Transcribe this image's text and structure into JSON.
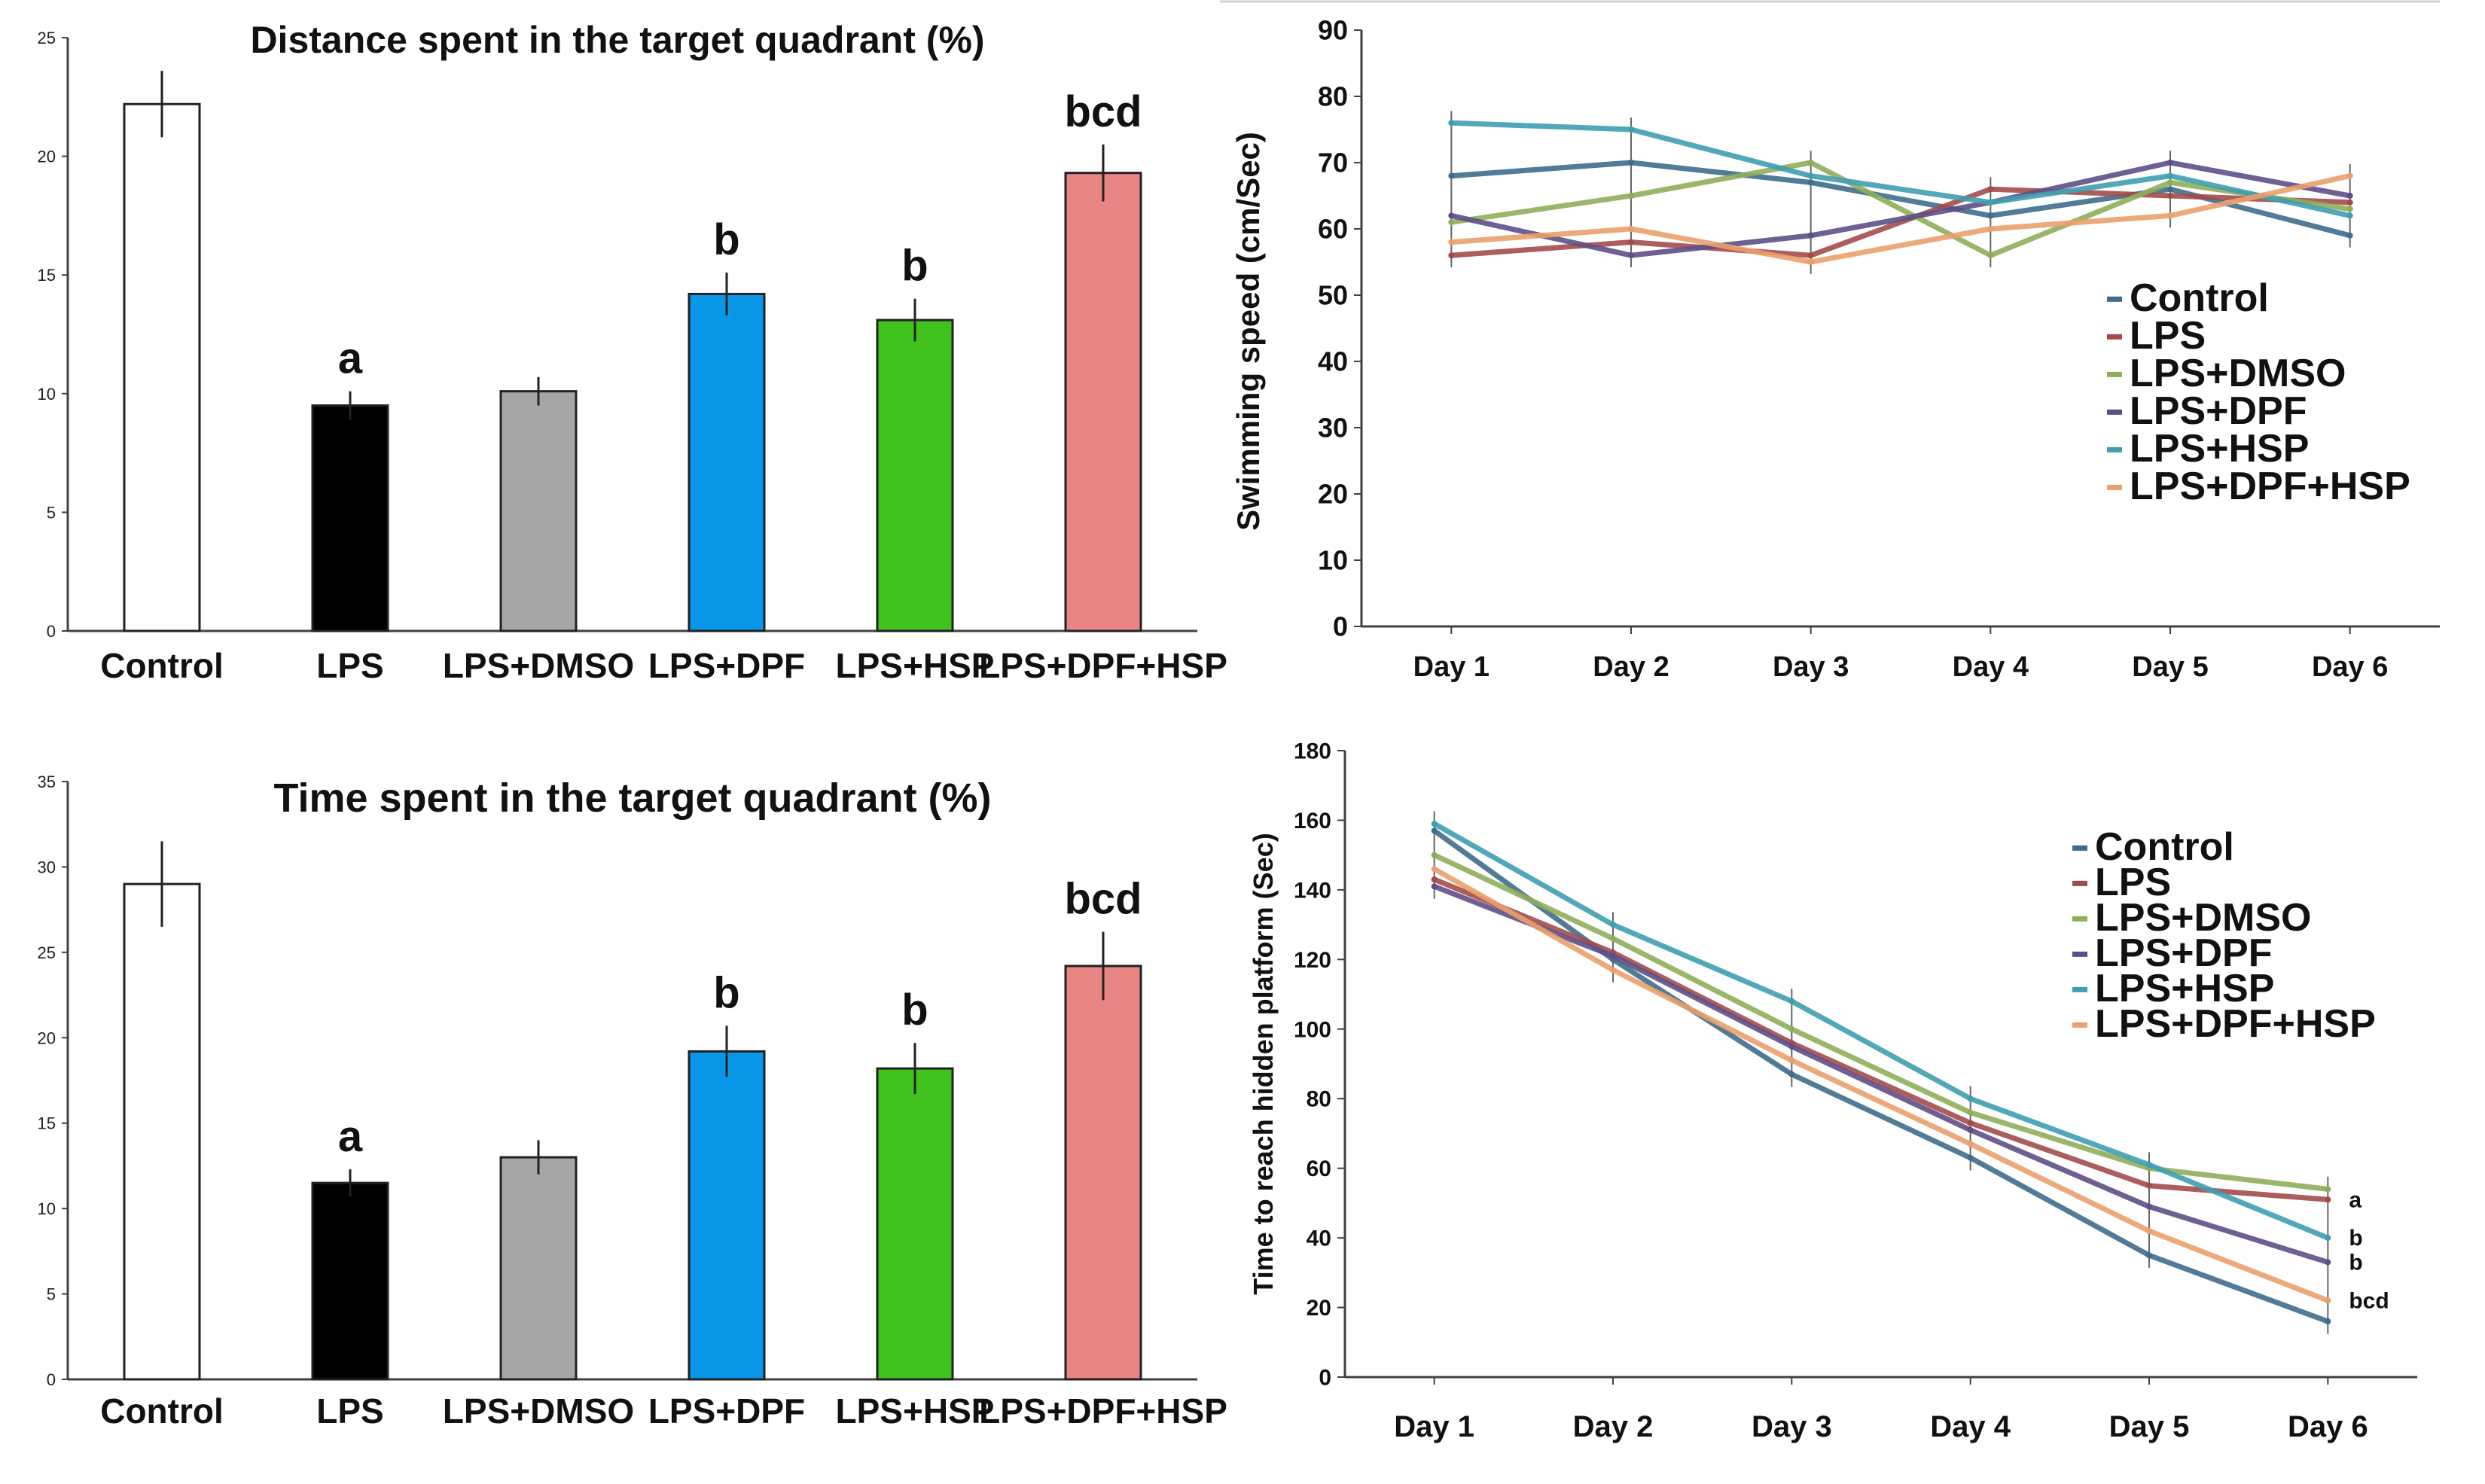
{
  "chart_data": [
    {
      "id": "distance",
      "type": "bar",
      "title": "Distance spent in the target quadrant (%)",
      "categories": [
        "Control",
        "LPS",
        "LPS+DMSO",
        "LPS+DPF",
        "LPS+HSP",
        "LPS+DPF+HSP"
      ],
      "values": [
        22.2,
        9.5,
        10.1,
        14.2,
        13.1,
        19.3
      ],
      "errors": [
        1.4,
        0.6,
        0.6,
        0.9,
        0.9,
        1.2
      ],
      "significance": [
        "",
        "a",
        "",
        "b",
        "b",
        "bcd"
      ],
      "colors": [
        "#ffffff",
        "#000000",
        "#a6a6a6",
        "#0a96e6",
        "#41c21f",
        "#e88484"
      ],
      "yticks": [
        0,
        5,
        10,
        15,
        20,
        25
      ],
      "ylim": [
        0,
        25
      ],
      "xlabel": "",
      "ylabel": ""
    },
    {
      "id": "speed",
      "type": "line",
      "title": "",
      "categories": [
        "Day 1",
        "Day 2",
        "Day 3",
        "Day 4",
        "Day 5",
        "Day 6"
      ],
      "series": [
        {
          "name": "Control",
          "color": "#3f6d8c",
          "values": [
            68,
            70,
            67,
            62,
            66,
            59
          ]
        },
        {
          "name": "LPS",
          "color": "#a34b4b",
          "values": [
            56,
            58,
            56,
            66,
            65,
            64
          ]
        },
        {
          "name": "LPS+DMSO",
          "color": "#8fae5a",
          "values": [
            61,
            65,
            70,
            56,
            67,
            63
          ]
        },
        {
          "name": "LPS+DPF",
          "color": "#5e4f86",
          "values": [
            62,
            56,
            59,
            64,
            70,
            65
          ]
        },
        {
          "name": "LPS+HSP",
          "color": "#3f9fb0",
          "values": [
            76,
            75,
            68,
            64,
            68,
            62
          ]
        },
        {
          "name": "LPS+DPF+HSP",
          "color": "#eaa06c",
          "values": [
            58,
            60,
            55,
            60,
            62,
            68
          ]
        }
      ],
      "yticks": [
        0,
        10,
        20,
        30,
        40,
        50,
        60,
        70,
        80,
        90
      ],
      "ylim": [
        0,
        90
      ],
      "xlabel": "",
      "ylabel": "Swimming speed (cm/Sec)",
      "legend": "center-right"
    },
    {
      "id": "time",
      "type": "bar",
      "title": "Time spent in the target quadrant (%)",
      "categories": [
        "Control",
        "LPS",
        "LPS+DMSO",
        "LPS+DPF",
        "LPS+HSP",
        "LPS+DPF+HSP"
      ],
      "values": [
        29.0,
        11.5,
        13.0,
        19.2,
        18.2,
        24.2
      ],
      "errors": [
        2.5,
        0.8,
        1.0,
        1.5,
        1.5,
        2.0
      ],
      "significance": [
        "",
        "a",
        "",
        "b",
        "b",
        "bcd"
      ],
      "colors": [
        "#ffffff",
        "#000000",
        "#a6a6a6",
        "#0a96e6",
        "#41c21f",
        "#e88484"
      ],
      "yticks": [
        0,
        5,
        10,
        15,
        20,
        25,
        30,
        35
      ],
      "ylim": [
        0,
        35
      ],
      "xlabel": "",
      "ylabel": ""
    },
    {
      "id": "latency",
      "type": "line",
      "title": "",
      "categories": [
        "Day 1",
        "Day 2",
        "Day 3",
        "Day 4",
        "Day 5",
        "Day 6"
      ],
      "series": [
        {
          "name": "Control",
          "color": "#3f6d8c",
          "values": [
            157,
            120,
            87,
            63,
            35,
            16
          ]
        },
        {
          "name": "LPS",
          "color": "#a34b4b",
          "values": [
            143,
            122,
            96,
            73,
            55,
            51
          ]
        },
        {
          "name": "LPS+DMSO",
          "color": "#8fae5a",
          "values": [
            150,
            126,
            100,
            76,
            60,
            54
          ]
        },
        {
          "name": "LPS+DPF",
          "color": "#5e4f86",
          "values": [
            141,
            121,
            95,
            71,
            49,
            33
          ]
        },
        {
          "name": "LPS+HSP",
          "color": "#3f9fb0",
          "values": [
            159,
            130,
            108,
            80,
            61,
            40
          ]
        },
        {
          "name": "LPS+DPF+HSP",
          "color": "#eaa06c",
          "values": [
            146,
            117,
            91,
            67,
            42,
            22
          ]
        }
      ],
      "end_labels": [
        "a",
        "b",
        "b",
        "bcd"
      ],
      "yticks": [
        0,
        20,
        40,
        60,
        80,
        100,
        120,
        140,
        160,
        180
      ],
      "ylim": [
        0,
        180
      ],
      "xlabel": "",
      "ylabel": "Time to reach hidden platform (Sec)",
      "legend": "top-right"
    }
  ]
}
